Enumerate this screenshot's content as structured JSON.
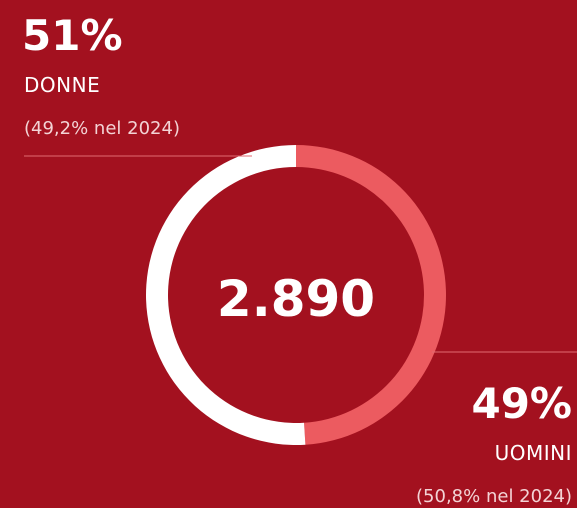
{
  "chart_data": {
    "type": "pie",
    "categories": [
      "DONNE",
      "UOMINI"
    ],
    "values": [
      51,
      49
    ],
    "value_labels": [
      "51%",
      "49%"
    ],
    "notes": [
      "(49,2% nel 2024)",
      "(50,8% nel 2024)"
    ],
    "colors": [
      "#ffffff",
      "#ec5b60"
    ],
    "center_label": "2.890"
  }
}
